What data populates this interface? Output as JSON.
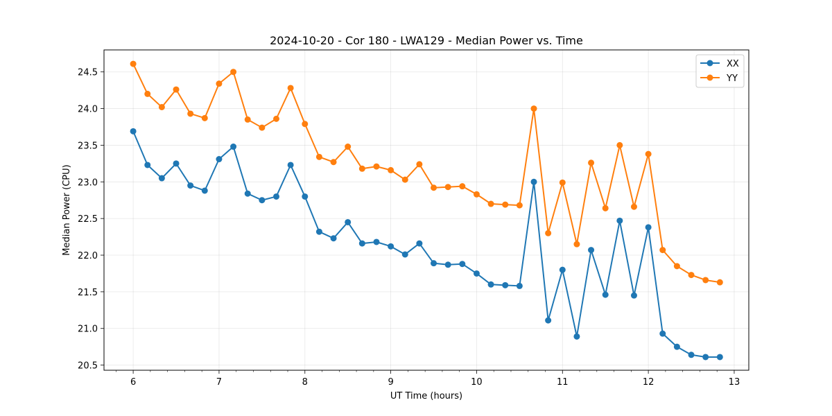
{
  "chart_data": {
    "type": "line",
    "title": "2024-10-20 - Cor 180 - LWA129 - Median Power vs. Time",
    "xlabel": "UT Time (hours)",
    "ylabel": "Median Power (CPU)",
    "xlim": [
      5.66,
      13.17
    ],
    "ylim": [
      20.43,
      24.8
    ],
    "xticks": [
      6,
      7,
      8,
      9,
      10,
      11,
      12,
      13
    ],
    "yticks": [
      20.5,
      21.0,
      21.5,
      22.0,
      22.5,
      23.0,
      23.5,
      24.0,
      24.5
    ],
    "ytick_labels": [
      "20.5",
      "21.0",
      "21.5",
      "22.0",
      "22.5",
      "23.0",
      "23.5",
      "24.0",
      "24.5"
    ],
    "grid": true,
    "legend_position": "upper right",
    "x": [
      6.0,
      6.1667,
      6.3333,
      6.5,
      6.6667,
      6.8333,
      7.0,
      7.1667,
      7.3333,
      7.5,
      7.6667,
      7.8333,
      8.0,
      8.1667,
      8.3333,
      8.5,
      8.6667,
      8.8333,
      9.0,
      9.1667,
      9.3333,
      9.5,
      9.6667,
      9.8333,
      10.0,
      10.1667,
      10.3333,
      10.5,
      10.6667,
      10.8333,
      11.0,
      11.1667,
      11.3333,
      11.5,
      11.6667,
      11.8333,
      12.0,
      12.1667,
      12.3333,
      12.5,
      12.6667,
      12.8333
    ],
    "series": [
      {
        "name": "XX",
        "color": "#1f77b4",
        "values": [
          23.69,
          23.23,
          23.05,
          23.25,
          22.95,
          22.88,
          23.31,
          23.48,
          22.84,
          22.75,
          22.8,
          23.23,
          22.8,
          22.32,
          22.23,
          22.45,
          22.16,
          22.18,
          22.12,
          22.01,
          22.16,
          21.89,
          21.87,
          21.88,
          21.75,
          21.6,
          21.59,
          21.58,
          23.0,
          21.11,
          21.8,
          20.89,
          22.07,
          21.46,
          22.47,
          21.45,
          22.38,
          20.93,
          20.75,
          20.64,
          20.61,
          20.61
        ]
      },
      {
        "name": "YY",
        "color": "#ff7f0e",
        "values": [
          24.61,
          24.2,
          24.02,
          24.26,
          23.93,
          23.87,
          24.34,
          24.5,
          23.85,
          23.74,
          23.86,
          24.28,
          23.79,
          23.34,
          23.27,
          23.48,
          23.18,
          23.21,
          23.16,
          23.03,
          23.24,
          22.92,
          22.93,
          22.94,
          22.83,
          22.7,
          22.69,
          22.68,
          24.0,
          22.3,
          22.99,
          22.15,
          23.26,
          22.64,
          23.5,
          22.66,
          23.38,
          22.07,
          21.85,
          21.73,
          21.66,
          21.63
        ]
      }
    ]
  }
}
